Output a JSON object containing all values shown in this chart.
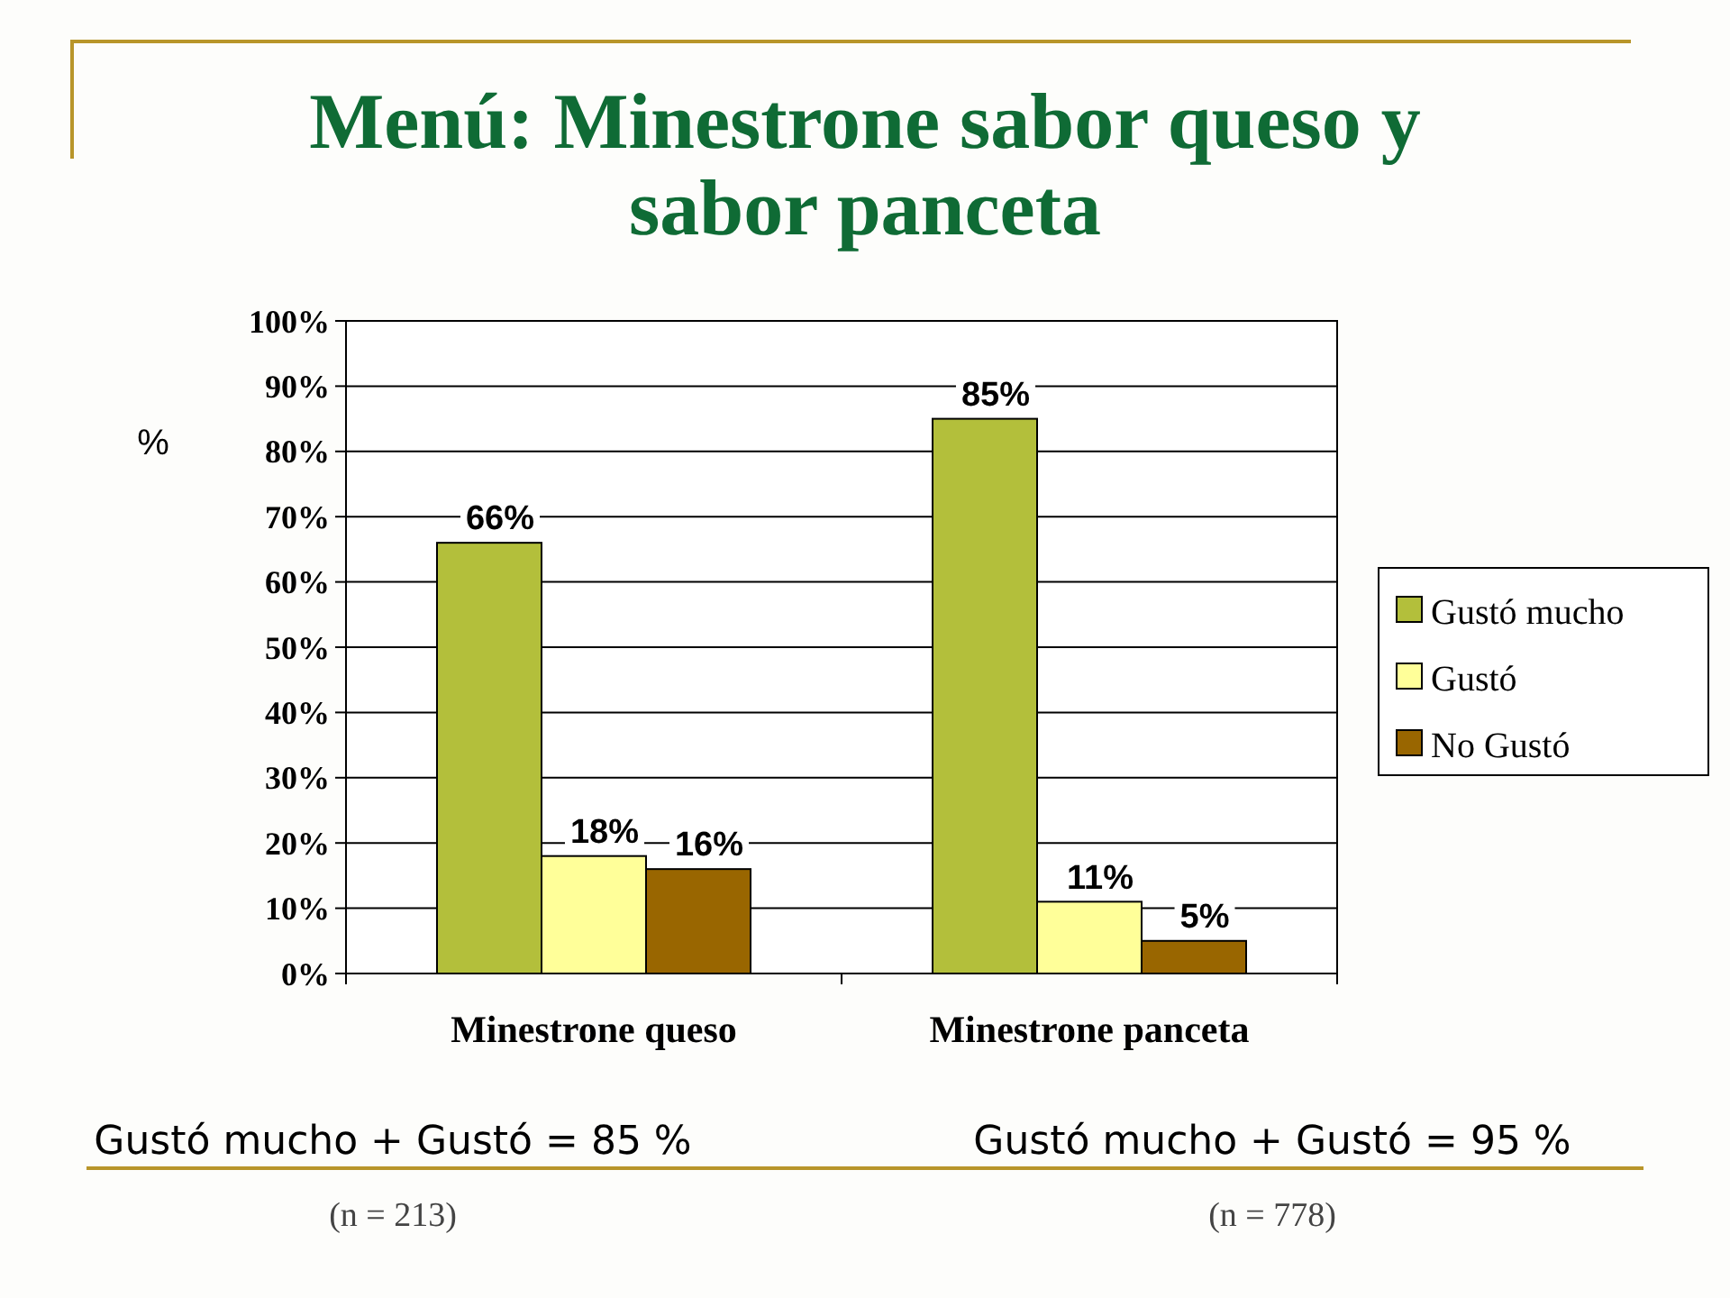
{
  "chart_data": {
    "type": "bar",
    "title": "Menú: Minestrone sabor queso y sabor panceta",
    "ylabel": "%",
    "categories": [
      "Minestrone queso",
      "Minestrone panceta"
    ],
    "series": [
      {
        "name": "Gustó mucho",
        "color": "#b3bf3b",
        "values": [
          66,
          85
        ]
      },
      {
        "name": "Gustó",
        "color": "#ffff99",
        "values": [
          18,
          11
        ]
      },
      {
        "name": "No Gustó",
        "color": "#996600",
        "values": [
          16,
          5
        ]
      }
    ],
    "ylim": [
      0,
      100
    ],
    "yticks": [
      {
        "value": 0,
        "label": "0%"
      },
      {
        "value": 10,
        "label": "10%"
      },
      {
        "value": 20,
        "label": "20%"
      },
      {
        "value": 30,
        "label": "30%"
      },
      {
        "value": 40,
        "label": "40%"
      },
      {
        "value": 50,
        "label": "50%"
      },
      {
        "value": 60,
        "label": "60%"
      },
      {
        "value": 70,
        "label": "70%"
      },
      {
        "value": 80,
        "label": "80%"
      },
      {
        "value": 90,
        "label": "90%"
      },
      {
        "value": 100,
        "label": "100%"
      }
    ],
    "grid": "y",
    "legend": "right",
    "value_labels": [
      [
        "66%",
        "85%"
      ],
      [
        "18%",
        "11%"
      ],
      [
        "16%",
        "5%"
      ]
    ],
    "annotations": [
      "Gustó mucho + Gustó = 85 %",
      "(n = 213)",
      "Gustó mucho + Gustó = 95 %",
      "(n = 778)"
    ]
  }
}
